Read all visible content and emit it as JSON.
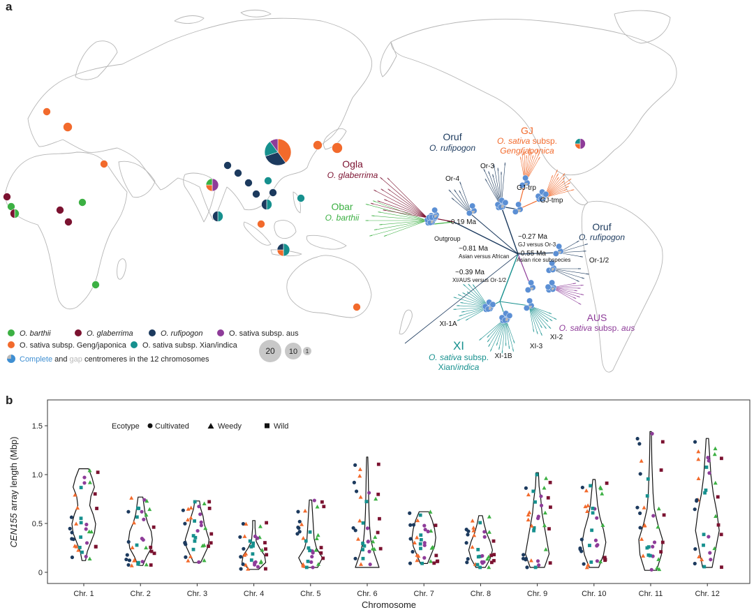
{
  "panel_a": {
    "letter": "a",
    "legend": {
      "items": [
        {
          "label": "O. barthii",
          "color": "#3cb043"
        },
        {
          "label": "O. glaberrima",
          "color": "#7b1230"
        },
        {
          "label": "O. rufipogon",
          "color": "#1c3a5e"
        },
        {
          "label": "O. sativa subsp. aus",
          "color": "#8e3c99"
        },
        {
          "label": "O. sativa subsp. Geng/japonica",
          "color": "#f26a2c"
        },
        {
          "label": "O. sativa subsp. Xian/indica",
          "color": "#16908e"
        }
      ],
      "complete_word": "Complete",
      "and_word": " and ",
      "gap_word": "gap",
      "centromere_text": " centromeres in the 12 chromosomes",
      "complete_color": "#3f8fd2",
      "gap_color": "#b9b9b9",
      "size_keys": [
        "20",
        "10",
        "1"
      ]
    },
    "tree": {
      "groups": [
        {
          "abbr": "Ogla",
          "species": "O. glaberrima",
          "color": "#7b1230"
        },
        {
          "abbr": "Obar",
          "species": "O. barthii",
          "color": "#3cb043"
        },
        {
          "abbr": "Oruf",
          "species": "O. rufipogon",
          "color": "#1c3a5e"
        },
        {
          "abbr": "GJ",
          "species_line1": "O. sativa subsp.",
          "species_line2": "Geng/japonica",
          "color": "#f26a2c"
        },
        {
          "abbr": "Oruf",
          "species": "O. rufipogon",
          "color": "#1c3a5e"
        },
        {
          "abbr": "AUS",
          "species": "O. sativa subsp. aus",
          "color": "#8e3c99"
        },
        {
          "abbr": "XI",
          "species_line1": "O. sativa subsp.",
          "species_line2": "Xian/indica",
          "color": "#16908e"
        }
      ],
      "clade_labels": [
        "Or-4",
        "Or-3",
        "GJ-trp",
        "GJ-tmp",
        "Or-1/2",
        "XI-1A",
        "XI-1B",
        "XI-2",
        "XI-3"
      ],
      "node_labels": [
        {
          "value": "~0.19 Ma"
        },
        {
          "value": "Outgroup"
        },
        {
          "value": "~0.27 Ma",
          "sub": "GJ versus Or-3"
        },
        {
          "value": "~0.81 Ma",
          "sub": "Asian versus African"
        },
        {
          "value": "~0.55 Ma",
          "sub": "Asian rice subspecies"
        },
        {
          "value": "~0.39 Ma",
          "sub": "XI/AUS versus Or-1/2"
        }
      ]
    }
  },
  "panel_b": {
    "letter": "b",
    "chart_data": {
      "type": "violin",
      "ylabel_italic": "CEN155",
      "ylabel_rest": " array length (Mbp)",
      "xlabel": "Chromosome",
      "ylim": [
        0,
        1.5
      ],
      "yticks": [
        "0",
        "0.5",
        "1.0",
        "1.5"
      ],
      "categories": [
        "Chr. 1",
        "Chr. 2",
        "Chr. 3",
        "Chr. 4",
        "Chr. 5",
        "Chr. 6",
        "Chr. 7",
        "Chr. 8",
        "Chr. 9",
        "Chr. 10",
        "Chr. 11",
        "Chr. 12"
      ],
      "violin_range": [
        [
          0.12,
          1.06
        ],
        [
          0.07,
          0.77
        ],
        [
          0.1,
          0.73
        ],
        [
          0.03,
          0.53
        ],
        [
          0.05,
          0.74
        ],
        [
          0.05,
          1.18
        ],
        [
          0.09,
          0.62
        ],
        [
          0.05,
          0.58
        ],
        [
          0.05,
          1.02
        ],
        [
          0.05,
          0.95
        ],
        [
          0.02,
          1.44
        ],
        [
          0.05,
          1.37
        ]
      ],
      "legend": {
        "title": "Ecotype",
        "items": [
          "Cultivated",
          "Weedy",
          "Wild"
        ]
      }
    }
  }
}
